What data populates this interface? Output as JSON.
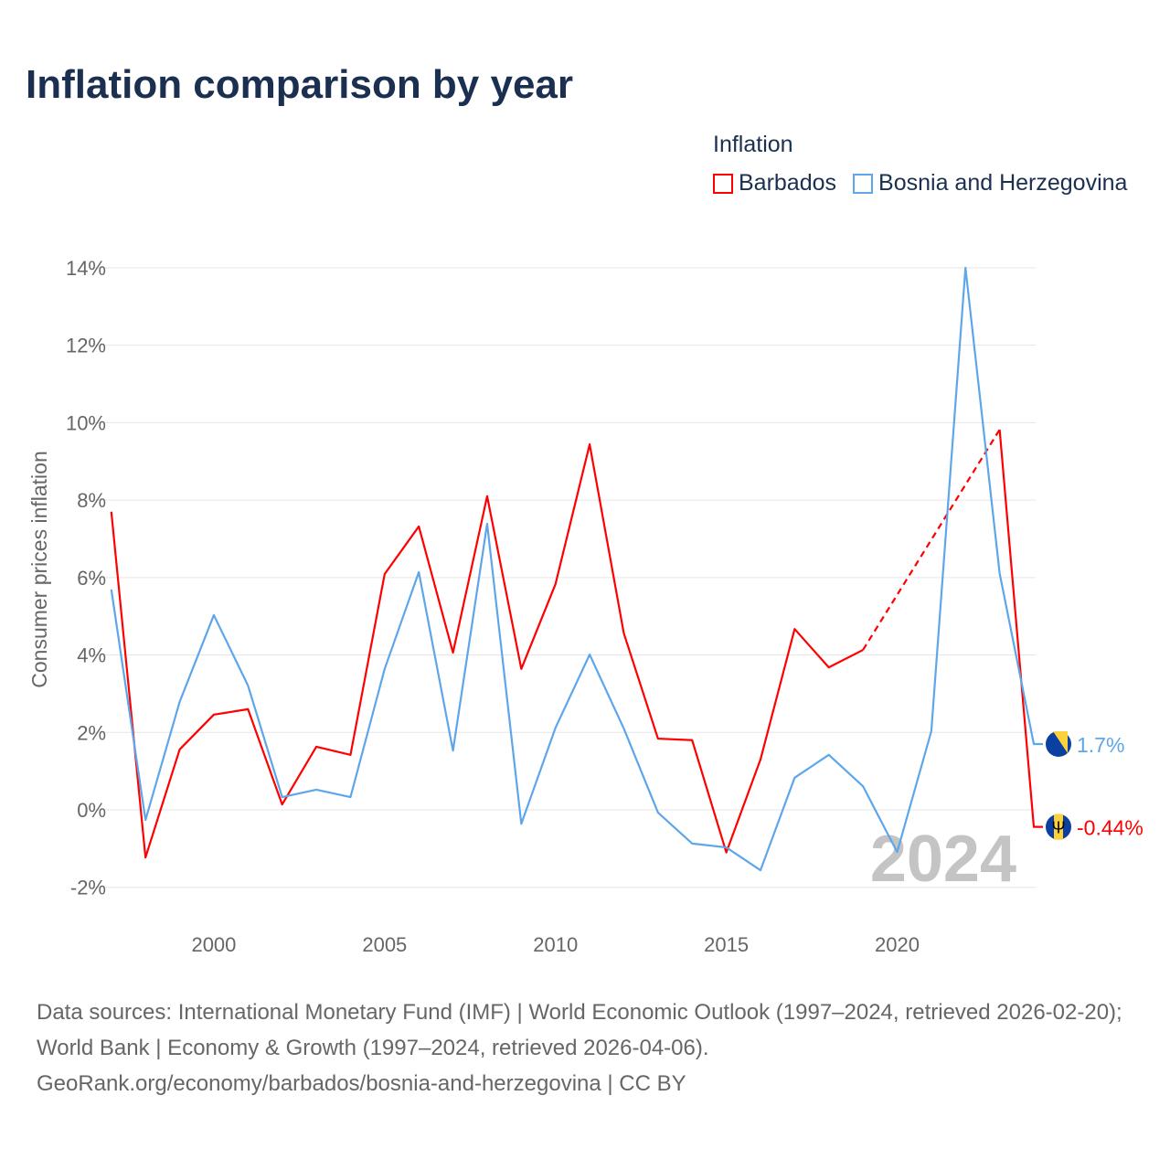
{
  "chart_data": {
    "type": "line",
    "title": "Inflation comparison by year",
    "xlabel": "",
    "ylabel": "Consumer prices inflation",
    "legend_title": "Inflation",
    "legend_position": "top-right",
    "ylim": [
      -2,
      14
    ],
    "xlim": [
      1997,
      2024
    ],
    "yticks": [
      "-2%",
      "0%",
      "2%",
      "4%",
      "6%",
      "8%",
      "10%",
      "12%",
      "14%"
    ],
    "ytick_values": [
      -2,
      0,
      2,
      4,
      6,
      8,
      10,
      12,
      14
    ],
    "xticks": [
      "2000",
      "2005",
      "2010",
      "2015",
      "2020"
    ],
    "xtick_values": [
      2000,
      2005,
      2010,
      2015,
      2020
    ],
    "grid": true,
    "year_watermark": "2024",
    "x": [
      1997,
      1998,
      1999,
      2000,
      2001,
      2002,
      2003,
      2004,
      2005,
      2006,
      2007,
      2008,
      2009,
      2010,
      2011,
      2012,
      2013,
      2014,
      2015,
      2016,
      2017,
      2018,
      2019,
      2020,
      2021,
      2022,
      2023,
      2024
    ],
    "series": [
      {
        "name": "Barbados",
        "color": "#ff0000",
        "end_label": "-0.44%",
        "values": [
          7.7,
          -1.23,
          1.56,
          2.46,
          2.6,
          0.14,
          1.63,
          1.42,
          6.09,
          7.32,
          4.06,
          8.1,
          3.64,
          5.83,
          9.44,
          4.56,
          1.84,
          1.8,
          -1.1,
          1.3,
          4.67,
          3.68,
          4.13,
          null,
          null,
          null,
          9.82,
          -0.44
        ]
      },
      {
        "name": "Bosnia and Herzegovina",
        "color": "#5ea6ea",
        "end_label": "1.7%",
        "values": [
          5.69,
          -0.26,
          2.79,
          5.03,
          3.21,
          0.33,
          0.52,
          0.33,
          3.64,
          6.14,
          1.53,
          7.39,
          -0.36,
          2.12,
          4.01,
          2.1,
          -0.07,
          -0.87,
          -0.97,
          -1.56,
          0.83,
          1.42,
          0.61,
          -1.09,
          2.03,
          14.0,
          6.11,
          1.7
        ]
      }
    ]
  },
  "source": {
    "line1": "Data sources: International Monetary Fund (IMF) | World Economic Outlook (1997–2024, retrieved 2026-02-20); World Bank | Economy & Growth (1997–2024, retrieved 2026-04-06).",
    "line2": "GeoRank.org/economy/barbados/bosnia-and-herzegovina | CC BY"
  }
}
